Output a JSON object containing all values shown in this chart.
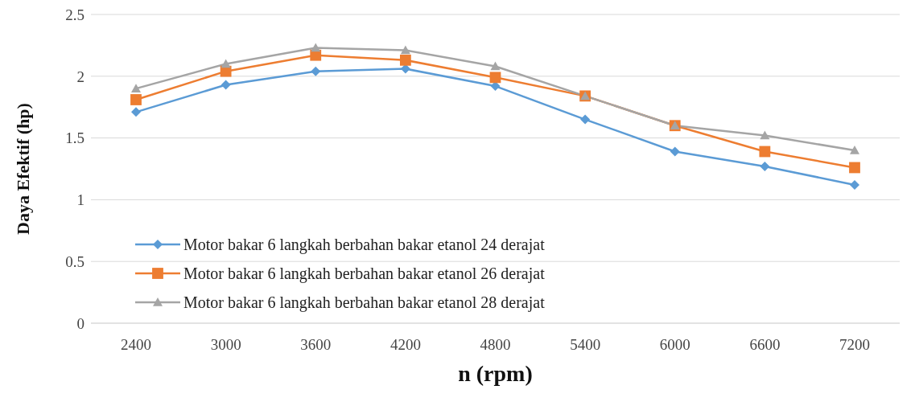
{
  "chart_data": {
    "type": "line",
    "xlabel": "n (rpm)",
    "ylabel": "Daya Efektif (hp)",
    "categories": [
      "2400",
      "3000",
      "3600",
      "4200",
      "4800",
      "5400",
      "6000",
      "6600",
      "7200"
    ],
    "series": [
      {
        "name": "Motor bakar 6 langkah berbahan bakar etanol 24 derajat",
        "color": "#5b9bd5",
        "marker": "diamond",
        "values": [
          1.71,
          1.93,
          2.04,
          2.06,
          1.92,
          1.65,
          1.39,
          1.27,
          1.12
        ]
      },
      {
        "name": "Motor bakar 6 langkah berbahan bakar etanol 26 derajat",
        "color": "#ed7d31",
        "marker": "square",
        "values": [
          1.81,
          2.04,
          2.17,
          2.13,
          1.99,
          1.84,
          1.6,
          1.39,
          1.26
        ]
      },
      {
        "name": "Motor bakar 6 langkah berbahan bakar etanol 28 derajat",
        "color": "#a5a5a5",
        "marker": "triangle",
        "values": [
          1.9,
          2.1,
          2.23,
          2.21,
          2.08,
          1.84,
          1.6,
          1.52,
          1.4
        ]
      }
    ],
    "ylim": [
      0,
      2.5
    ],
    "yticks": [
      0,
      0.5,
      1,
      1.5,
      2,
      2.5
    ],
    "grid": "y",
    "legend": "bottom left",
    "line_style": "solid"
  }
}
